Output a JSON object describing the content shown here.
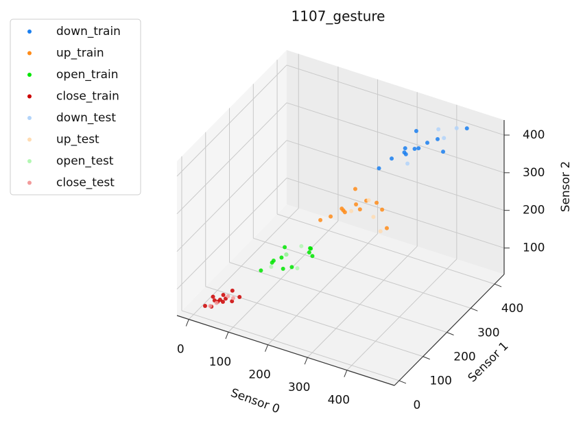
{
  "chart_data": {
    "type": "scatter3d",
    "title": "1107_gesture",
    "xlabel": "Sensor 0",
    "ylabel": "Sensor 1",
    "zlabel": "Sensor 2",
    "xlim": [
      -30,
      520
    ],
    "ylim": [
      -20,
      440
    ],
    "zlim": [
      30,
      440
    ],
    "xticks": [
      0,
      100,
      200,
      300,
      400
    ],
    "yticks": [
      0,
      100,
      200,
      300,
      400
    ],
    "zticks": [
      100,
      200,
      300,
      400
    ],
    "grid": true,
    "legend": "upper left",
    "series": [
      {
        "name": "down_train",
        "color": "#1a7ff0",
        "x": [
          300,
          320,
          340,
          360,
          330,
          380,
          350,
          400,
          370,
          340,
          420,
          450
        ],
        "y": [
          280,
          300,
          320,
          330,
          340,
          350,
          310,
          360,
          330,
          370,
          350,
          400
        ],
        "z": [
          340,
          360,
          370,
          380,
          365,
          390,
          375,
          400,
          385,
          395,
          380,
          420
        ]
      },
      {
        "name": "up_train",
        "color": "#ff8c1a",
        "x": [
          200,
          220,
          240,
          260,
          230,
          280,
          250,
          300,
          270,
          240,
          320,
          350
        ],
        "y": [
          200,
          210,
          230,
          250,
          240,
          260,
          220,
          270,
          250,
          280,
          260,
          230
        ],
        "z": [
          220,
          230,
          240,
          250,
          235,
          260,
          245,
          255,
          240,
          265,
          250,
          230
        ]
      },
      {
        "name": "open_train",
        "color": "#00e600",
        "x": [
          110,
          130,
          150,
          170,
          140,
          190,
          160,
          120,
          200,
          180,
          210,
          150
        ],
        "y": [
          100,
          120,
          140,
          130,
          150,
          170,
          110,
          130,
          160,
          190,
          150,
          120
        ],
        "z": [
          120,
          140,
          150,
          130,
          160,
          150,
          135,
          125,
          170,
          145,
          160,
          155
        ]
      },
      {
        "name": "close_train",
        "color": "#cc0000",
        "x": [
          20,
          35,
          50,
          60,
          45,
          70,
          30,
          55,
          80,
          40,
          65,
          25
        ],
        "y": [
          15,
          30,
          40,
          35,
          50,
          45,
          25,
          20,
          60,
          35,
          55,
          40
        ],
        "z": [
          50,
          60,
          55,
          70,
          65,
          60,
          45,
          75,
          65,
          55,
          80,
          60
        ]
      },
      {
        "name": "down_test",
        "color": "#b3d4fa",
        "x": [
          390,
          430,
          360,
          410
        ],
        "y": [
          380,
          390,
          300,
          370
        ],
        "z": [
          410,
          420,
          360,
          400
        ]
      },
      {
        "name": "up_test",
        "color": "#ffdcb3",
        "x": [
          310,
          280,
          340,
          260
        ],
        "y": [
          240,
          270,
          220,
          230
        ],
        "z": [
          240,
          255,
          225,
          245
        ]
      },
      {
        "name": "open_test",
        "color": "#b3f7b3",
        "x": [
          150,
          190,
          170,
          130
        ],
        "y": [
          140,
          120,
          170,
          110
        ],
        "z": [
          150,
          140,
          160,
          130
        ]
      },
      {
        "name": "close_test",
        "color": "#f29b9b",
        "x": [
          40,
          70,
          30,
          60
        ],
        "y": [
          30,
          50,
          20,
          45
        ],
        "z": [
          55,
          65,
          50,
          70
        ]
      }
    ]
  }
}
